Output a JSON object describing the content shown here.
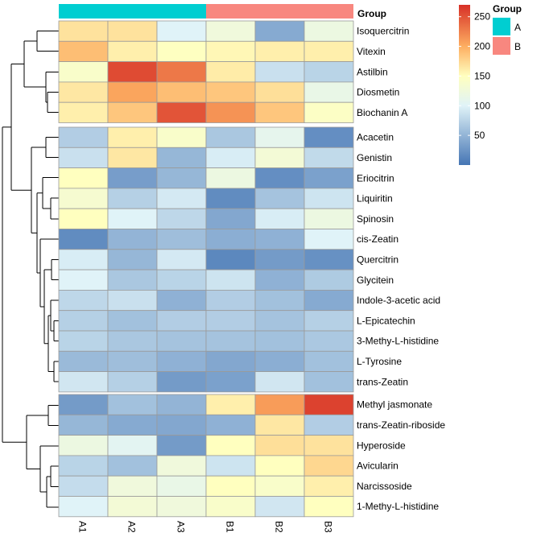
{
  "chart_data": {
    "type": "heatmap",
    "title": "",
    "columns": [
      "A1",
      "A2",
      "A3",
      "B1",
      "B2",
      "B3"
    ],
    "column_group_label": "Group",
    "column_groups": [
      "A",
      "A",
      "A",
      "B",
      "B",
      "B"
    ],
    "group_legend": {
      "title": "Group",
      "entries": [
        {
          "name": "A",
          "color": "#00CED1"
        },
        {
          "name": "B",
          "color": "#F8877F"
        }
      ]
    },
    "color_scale": {
      "min": 0,
      "max": 270,
      "ticks": [
        50,
        100,
        150,
        200,
        250
      ],
      "stops": [
        {
          "value": 0,
          "color": "#4575B4"
        },
        {
          "value": 100,
          "color": "#E0F3F8"
        },
        {
          "value": 150,
          "color": "#FFFFBF"
        },
        {
          "value": 200,
          "color": "#FDAE61"
        },
        {
          "value": 270,
          "color": "#D73027"
        }
      ]
    },
    "row_blocks": [
      {
        "rows": [
          {
            "name": "Isoquercitrin",
            "values": [
              168,
              168,
              100,
              125,
              42,
              120
            ]
          },
          {
            "name": "Vitexin",
            "values": [
              190,
              160,
              148,
              155,
              160,
              160
            ]
          },
          {
            "name": "Astilbin",
            "values": [
              140,
              255,
              230,
              162,
              85,
              75
            ]
          },
          {
            "name": "Diosmetin",
            "values": [
              165,
              205,
              190,
              185,
              170,
              115
            ]
          },
          {
            "name": "Biochanin A",
            "values": [
              160,
              185,
              250,
              215,
              185,
              145
            ]
          }
        ]
      },
      {
        "rows": [
          {
            "name": "Acacetin",
            "values": [
              70,
              160,
              140,
              65,
              110,
              20
            ]
          },
          {
            "name": "Genistin",
            "values": [
              85,
              165,
              52,
              95,
              130,
              80
            ]
          },
          {
            "name": "Eriocitrin",
            "values": [
              150,
              32,
              52,
              120,
              20,
              35
            ]
          },
          {
            "name": "Liquiritin",
            "values": [
              135,
              72,
              92,
              18,
              62,
              88
            ]
          },
          {
            "name": "Spinosin",
            "values": [
              150,
              100,
              78,
              40,
              95,
              120
            ]
          },
          {
            "name": "cis-Zeatin",
            "values": [
              18,
              50,
              58,
              45,
              48,
              100
            ]
          },
          {
            "name": "Quercitrin",
            "values": [
              95,
              52,
              92,
              15,
              30,
              22
            ]
          },
          {
            "name": "Glycitein",
            "values": [
              100,
              65,
              75,
              88,
              48,
              68
            ]
          },
          {
            "name": "Indole-3-acetic acid",
            "values": [
              78,
              85,
              48,
              70,
              60,
              42
            ]
          },
          {
            "name": "L-Epicatechin",
            "values": [
              72,
              60,
              70,
              70,
              62,
              72
            ]
          },
          {
            "name": "3-Methy-L-histidine",
            "values": [
              75,
              65,
              62,
              62,
              60,
              66
            ]
          },
          {
            "name": "L-Tyrosine",
            "values": [
              55,
              58,
              48,
              40,
              45,
              60
            ]
          },
          {
            "name": "trans-Zeatin",
            "values": [
              90,
              72,
              30,
              35,
              90,
              60
            ]
          }
        ]
      },
      {
        "rows": [
          {
            "name": "Methyl jasmonate",
            "values": [
              30,
              60,
              50,
              160,
              210,
              260
            ]
          },
          {
            "name": "trans-Zeatin-riboside",
            "values": [
              52,
              42,
              40,
              48,
              165,
              70
            ]
          },
          {
            "name": "Hyperoside",
            "values": [
              120,
              105,
              30,
              150,
              170,
              168
            ]
          },
          {
            "name": "Avicularin",
            "values": [
              75,
              60,
              125,
              88,
              150,
              175
            ]
          },
          {
            "name": "Narcissoside",
            "values": [
              82,
              125,
              115,
              150,
              140,
              160
            ]
          },
          {
            "name": "1-Methy-L-histidine",
            "values": [
              100,
              130,
              125,
              140,
              90,
              150
            ]
          }
        ]
      }
    ]
  }
}
